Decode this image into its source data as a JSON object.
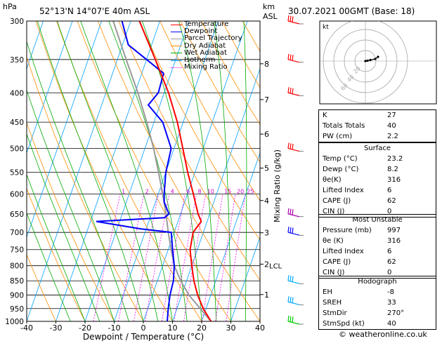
{
  "header": {
    "location": "52°13'N  14°07'E  40m  ASL",
    "datetime": "30.07.2021  00GMT  (Base: 18)",
    "hpa_label": "hPa",
    "km_label": "km",
    "asl_label": "ASL"
  },
  "legend": [
    {
      "label": "Temperature",
      "color": "#ff0000",
      "dash": ""
    },
    {
      "label": "Dewpoint",
      "color": "#0000ff",
      "dash": ""
    },
    {
      "label": "Parcel Trajectory",
      "color": "#999999",
      "dash": ""
    },
    {
      "label": "Dry Adiabat",
      "color": "#ff8c00",
      "dash": ""
    },
    {
      "label": "Wet Adiabat",
      "color": "#00aa00",
      "dash": ""
    },
    {
      "label": "Isotherm",
      "color": "#00a0ff",
      "dash": ""
    },
    {
      "label": "Mixing Ratio",
      "color": "#ff00ff",
      "dash": "2,2"
    }
  ],
  "chart_data": {
    "type": "skew-t",
    "xlabel": "Dewpoint / Temperature (°C)",
    "ylabel_right": "Mixing Ratio (g/kg)",
    "x_ticks": [
      -40,
      -30,
      -20,
      -10,
      0,
      10,
      20,
      30,
      40
    ],
    "pressure_ticks": [
      300,
      350,
      400,
      450,
      500,
      550,
      600,
      650,
      700,
      750,
      800,
      850,
      900,
      950,
      1000
    ],
    "km_ticks": [
      {
        "label": "8",
        "p": 356
      },
      {
        "label": "7",
        "p": 411
      },
      {
        "label": "6",
        "p": 472
      },
      {
        "label": "5",
        "p": 541
      },
      {
        "label": "4",
        "p": 616
      },
      {
        "label": "3",
        "p": 701
      },
      {
        "label": "2",
        "p": 795
      },
      {
        "label": "1",
        "p": 898
      }
    ],
    "lcl_label": "LCL",
    "lcl_pressure": 800,
    "mixing_ratio_labels": [
      "1",
      "2",
      "3",
      "4",
      "6",
      "8",
      "10",
      "15",
      "20",
      "25"
    ],
    "temperature": [
      {
        "p": 1000,
        "t": 23.2
      },
      {
        "p": 950,
        "t": 19.0
      },
      {
        "p": 900,
        "t": 15.5
      },
      {
        "p": 850,
        "t": 12.5
      },
      {
        "p": 800,
        "t": 10.0
      },
      {
        "p": 750,
        "t": 7.5
      },
      {
        "p": 700,
        "t": 6.5
      },
      {
        "p": 670,
        "t": 8.0
      },
      {
        "p": 650,
        "t": 6.0
      },
      {
        "p": 600,
        "t": 2.0
      },
      {
        "p": 550,
        "t": -2.5
      },
      {
        "p": 500,
        "t": -7.0
      },
      {
        "p": 450,
        "t": -12.0
      },
      {
        "p": 400,
        "t": -18.5
      },
      {
        "p": 350,
        "t": -27.0
      },
      {
        "p": 300,
        "t": -37.0
      }
    ],
    "dewpoint": [
      {
        "p": 1000,
        "t": 8.2
      },
      {
        "p": 950,
        "t": 7.0
      },
      {
        "p": 900,
        "t": 6.0
      },
      {
        "p": 850,
        "t": 5.5
      },
      {
        "p": 800,
        "t": 4.0
      },
      {
        "p": 750,
        "t": 1.5
      },
      {
        "p": 700,
        "t": -1.0
      },
      {
        "p": 690,
        "t": -12.0
      },
      {
        "p": 670,
        "t": -28.0
      },
      {
        "p": 660,
        "t": -5.0
      },
      {
        "p": 650,
        "t": -4.0
      },
      {
        "p": 620,
        "t": -7.0
      },
      {
        "p": 600,
        "t": -8.0
      },
      {
        "p": 550,
        "t": -10.0
      },
      {
        "p": 500,
        "t": -11.0
      },
      {
        "p": 450,
        "t": -17.0
      },
      {
        "p": 420,
        "t": -24.0
      },
      {
        "p": 400,
        "t": -22.0
      },
      {
        "p": 370,
        "t": -22.5
      },
      {
        "p": 350,
        "t": -30.0
      },
      {
        "p": 330,
        "t": -38.0
      },
      {
        "p": 300,
        "t": -43.0
      }
    ],
    "parcel": [
      {
        "p": 1000,
        "t": 23.2
      },
      {
        "p": 950,
        "t": 18.0
      },
      {
        "p": 900,
        "t": 12.5
      },
      {
        "p": 850,
        "t": 8.0
      },
      {
        "p": 800,
        "t": 4.0
      },
      {
        "p": 750,
        "t": 1.0
      },
      {
        "p": 700,
        "t": -2.0
      },
      {
        "p": 650,
        "t": -5.0
      },
      {
        "p": 600,
        "t": -8.5
      },
      {
        "p": 550,
        "t": -12.5
      },
      {
        "p": 500,
        "t": -17.0
      },
      {
        "p": 450,
        "t": -22.5
      },
      {
        "p": 400,
        "t": -29.0
      },
      {
        "p": 350,
        "t": -37.0
      },
      {
        "p": 300,
        "t": -46.0
      }
    ]
  },
  "hodograph": {
    "title": "kt",
    "ring_labels": [
      "20",
      "40",
      "60"
    ],
    "points": [
      [
        0,
        0
      ],
      [
        3,
        1
      ],
      [
        7,
        3
      ],
      [
        14,
        6
      ],
      [
        18,
        12
      ]
    ]
  },
  "winds": [
    {
      "p": 300,
      "color": "#ff0000"
    },
    {
      "p": 350,
      "color": "#ff0000"
    },
    {
      "p": 400,
      "color": "#ff0000"
    },
    {
      "p": 500,
      "color": "#ff0000"
    },
    {
      "p": 650,
      "color": "#aa00aa"
    },
    {
      "p": 700,
      "color": "#0000ff"
    },
    {
      "p": 850,
      "color": "#00aaff"
    },
    {
      "p": 925,
      "color": "#00aaff"
    },
    {
      "p": 1000,
      "color": "#00cc00"
    }
  ],
  "indices": {
    "rows": [
      {
        "label": "K",
        "value": "27"
      },
      {
        "label": "Totals Totals",
        "value": "40"
      },
      {
        "label": "PW (cm)",
        "value": "2.2"
      }
    ]
  },
  "surface": {
    "title": "Surface",
    "rows": [
      {
        "label": "Temp (°C)",
        "value": "23.2"
      },
      {
        "label": "Dewp (°C)",
        "value": "8.2"
      },
      {
        "label": "θe(K)",
        "value": "316"
      },
      {
        "label": "Lifted Index",
        "value": "6"
      },
      {
        "label": "CAPE (J)",
        "value": "62"
      },
      {
        "label": "CIN (J)",
        "value": "0"
      }
    ]
  },
  "most_unstable": {
    "title": "Most Unstable",
    "rows": [
      {
        "label": "Pressure (mb)",
        "value": "997"
      },
      {
        "label": "θe (K)",
        "value": "316"
      },
      {
        "label": "Lifted Index",
        "value": "6"
      },
      {
        "label": "CAPE (J)",
        "value": "62"
      },
      {
        "label": "CIN (J)",
        "value": "0"
      }
    ]
  },
  "hodograph_table": {
    "title": "Hodograph",
    "rows": [
      {
        "label": "EH",
        "value": "-8"
      },
      {
        "label": "SREH",
        "value": "33"
      },
      {
        "label": "StmDir",
        "value": "270°"
      },
      {
        "label": "StmSpd (kt)",
        "value": "40"
      }
    ]
  },
  "copyright": "© weatheronline.co.uk"
}
